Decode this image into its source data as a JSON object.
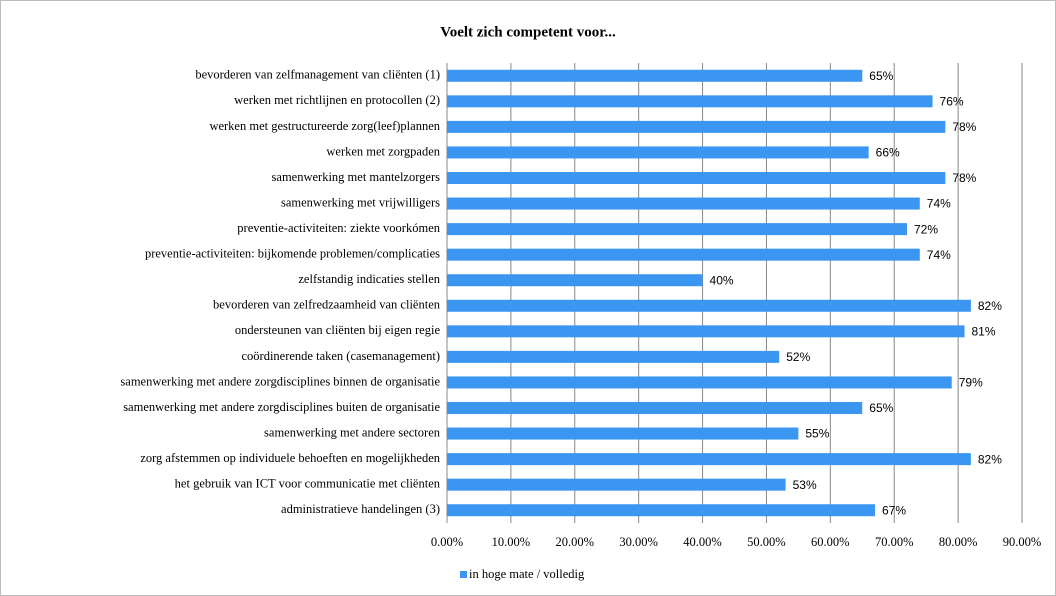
{
  "chart_data": {
    "type": "barh",
    "title": "Voelt zich competent voor...",
    "categories": [
      "bevorderen van zelfmanagement van cliënten (1)",
      "werken met richtlijnen en protocollen (2)",
      "werken met gestructureerde zorg(leef)plannen",
      "werken met zorgpaden",
      "samenwerking met mantelzorgers",
      "samenwerking met vrijwilligers",
      "preventie-activiteiten: ziekte voorkómen",
      "preventie-activiteiten: bijkomende problemen/complicaties",
      "zelfstandig indicaties stellen",
      "bevorderen van zelfredzaamheid van cliënten",
      "ondersteunen van cliënten bij eigen regie",
      "coördinerende taken (casemanagement)",
      "samenwerking met andere zorgdisciplines binnen de organisatie",
      "samenwerking met andere zorgdisciplines buiten de organisatie",
      "samenwerking met andere sectoren",
      "zorg afstemmen op individuele behoeften en mogelijkheden",
      "het gebruik van ICT voor communicatie met cliënten",
      "administratieve handelingen (3)"
    ],
    "series": [
      {
        "name": "in hoge mate / volledig",
        "color": "#3a96f0",
        "values": [
          65,
          76,
          78,
          66,
          78,
          74,
          72,
          74,
          40,
          82,
          81,
          52,
          79,
          65,
          55,
          82,
          53,
          67
        ],
        "value_labels": [
          "65%",
          "76%",
          "78%",
          "66%",
          "78%",
          "74%",
          "72%",
          "74%",
          "40%",
          "82%",
          "81%",
          "52%",
          "79%",
          "65%",
          "55%",
          "82%",
          "53%",
          "67%"
        ]
      }
    ],
    "xlim": [
      0,
      90
    ],
    "xticks": [
      {
        "value": 0,
        "label": "0.00%"
      },
      {
        "value": 10,
        "label": "10.00%"
      },
      {
        "value": 20,
        "label": "20.00%"
      },
      {
        "value": 30,
        "label": "30.00%"
      },
      {
        "value": 40,
        "label": "40.00%"
      },
      {
        "value": 50,
        "label": "50.00%"
      },
      {
        "value": 60,
        "label": "60.00%"
      },
      {
        "value": 70,
        "label": "70.00%"
      },
      {
        "value": 80,
        "label": "80.00%"
      },
      {
        "value": 90,
        "label": "90.00%"
      }
    ],
    "grid": true,
    "legend": "bottom"
  }
}
